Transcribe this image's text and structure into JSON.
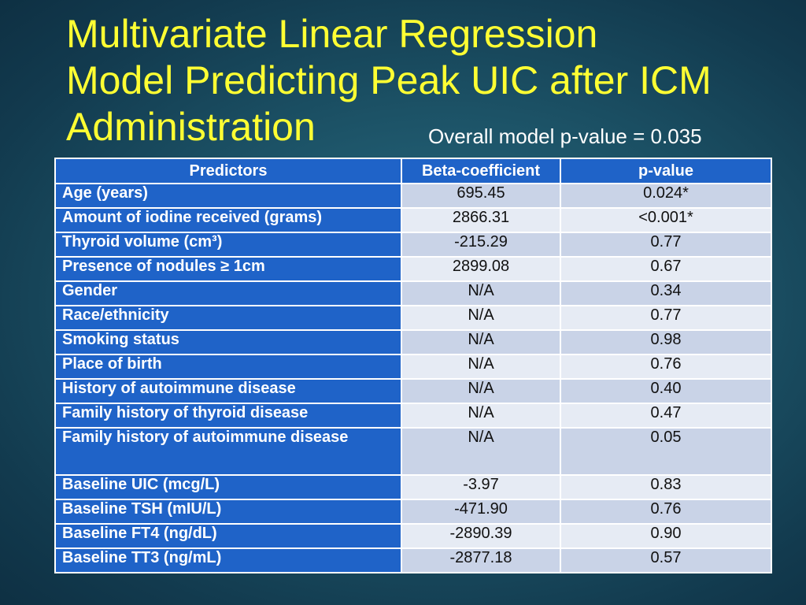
{
  "title_lines": [
    "Multivariate Linear Regression",
    "Model Predicting Peak UIC after ICM",
    "Administration"
  ],
  "overall_pvalue": "Overall model p-value = 0.035",
  "table": {
    "headers": [
      "Predictors",
      "Beta-coefficient",
      "p-value"
    ],
    "rows": [
      {
        "predictor": "Age (years)",
        "beta": "695.45",
        "p": "0.024*"
      },
      {
        "predictor": "Amount of iodine received (grams)",
        "beta": "2866.31",
        "p": "<0.001*"
      },
      {
        "predictor": "Thyroid volume (cm³)",
        "beta": "-215.29",
        "p": "0.77"
      },
      {
        "predictor": "Presence of nodules ≥ 1cm",
        "beta": "2899.08",
        "p": "0.67"
      },
      {
        "predictor": "Gender",
        "beta": "N/A",
        "p": "0.34"
      },
      {
        "predictor": "Race/ethnicity",
        "beta": "N/A",
        "p": "0.77"
      },
      {
        "predictor": "Smoking status",
        "beta": "N/A",
        "p": "0.98"
      },
      {
        "predictor": "Place of birth",
        "beta": "N/A",
        "p": "0.76"
      },
      {
        "predictor": "History of autoimmune disease",
        "beta": "N/A",
        "p": "0.40"
      },
      {
        "predictor": "Family history of thyroid disease",
        "beta": "N/A",
        "p": "0.47"
      },
      {
        "predictor": "Family history of autoimmune disease",
        "beta": "N/A",
        "p": "0.05"
      },
      {
        "predictor": "Baseline UIC (mcg/L)",
        "beta": "-3.97",
        "p": "0.83"
      },
      {
        "predictor": "Baseline TSH (mIU/L)",
        "beta": "-471.90",
        "p": "0.76"
      },
      {
        "predictor": "Baseline FT4 (ng/dL)",
        "beta": "-2890.39",
        "p": "0.90"
      },
      {
        "predictor": "Baseline TT3 (ng/mL)",
        "beta": "-2877.18",
        "p": "0.57"
      }
    ]
  }
}
